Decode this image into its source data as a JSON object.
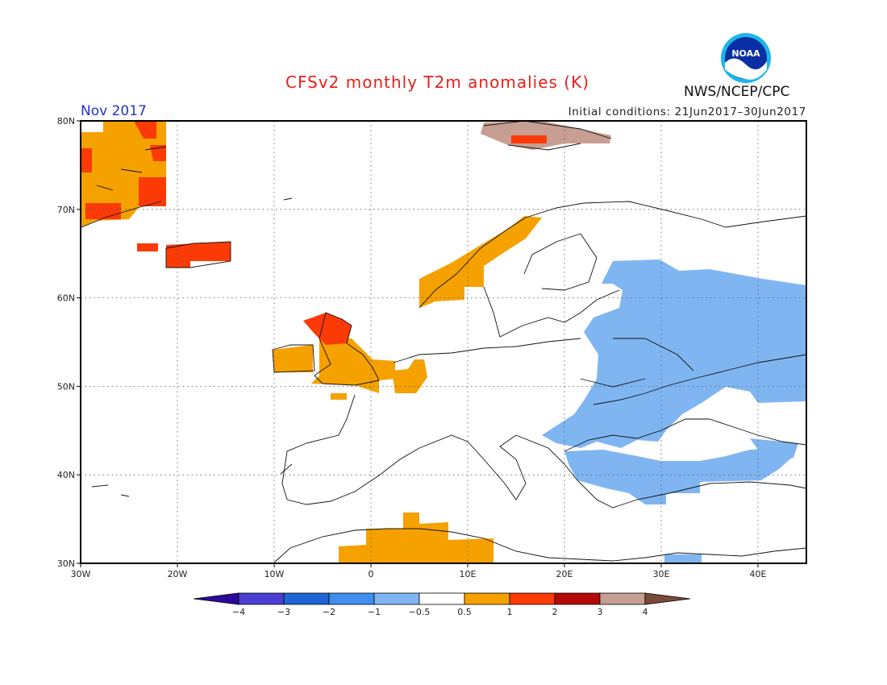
{
  "title": "CFSv2 monthly T2m anomalies (K)",
  "month": "Nov 2017",
  "initial_conditions": "Initial conditions: 21Jun2017–30Jun2017",
  "organization": "NWS/NCEP/CPC",
  "logo_text": "NOAA",
  "map": {
    "lon_range": [
      -30,
      45
    ],
    "lat_range": [
      30,
      80
    ],
    "lon_ticks": [
      {
        "value": -30,
        "label": "30W"
      },
      {
        "value": -20,
        "label": "20W"
      },
      {
        "value": -10,
        "label": "10W"
      },
      {
        "value": 0,
        "label": "0"
      },
      {
        "value": 10,
        "label": "10E"
      },
      {
        "value": 20,
        "label": "20E"
      },
      {
        "value": 30,
        "label": "30E"
      },
      {
        "value": 40,
        "label": "40E"
      }
    ],
    "lat_ticks": [
      {
        "value": 80,
        "label": "80N"
      },
      {
        "value": 70,
        "label": "70N"
      },
      {
        "value": 60,
        "label": "60N"
      },
      {
        "value": 50,
        "label": "50N"
      },
      {
        "value": 40,
        "label": "40N"
      },
      {
        "value": 30,
        "label": "30N"
      }
    ],
    "gridlines": "dotted"
  },
  "colorbar": {
    "colors": [
      "#2a0a9a",
      "#4a3fd0",
      "#1f66d4",
      "#3f8ff0",
      "#7fb6f2",
      "#ffffff",
      "#f5a100",
      "#fb3a06",
      "#b30a06",
      "#c79e92",
      "#7a4a38"
    ],
    "labels": [
      "−4",
      "−3",
      "−2",
      "−1",
      "−0.5",
      "0.5",
      "1",
      "2",
      "3",
      "4"
    ]
  },
  "anomaly_colors": {
    "cool": "#7fb6f2",
    "warm": "#f5a100",
    "warmer": "#fb3a06",
    "hot": "#c79e92"
  }
}
